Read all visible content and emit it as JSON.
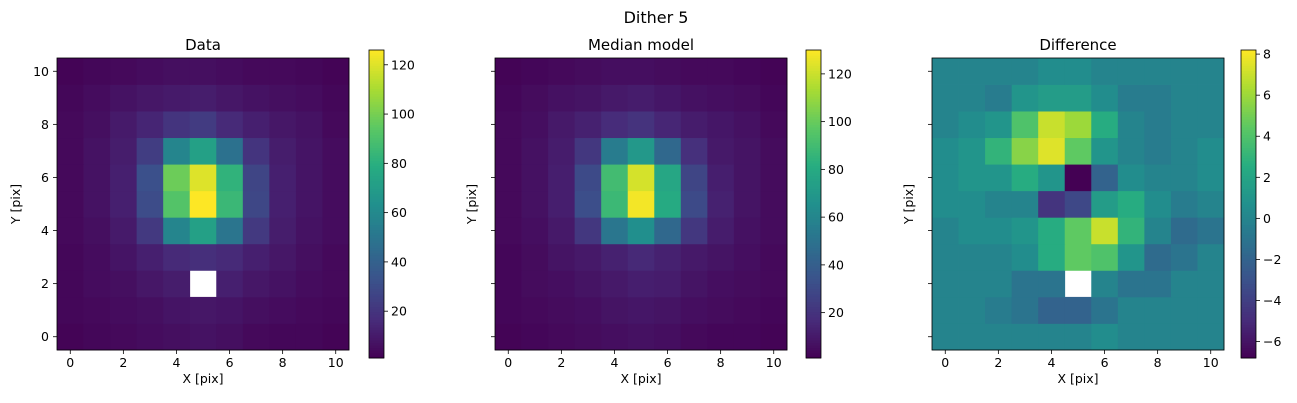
{
  "figure": {
    "suptitle": "Dither 5"
  },
  "chart_data": [
    {
      "type": "heatmap",
      "title": "Data",
      "xlabel": "X [pix]",
      "ylabel": "Y [pix]",
      "xlim": [
        -0.5,
        10.5
      ],
      "ylim": [
        -0.5,
        10.5
      ],
      "xticks": [
        0,
        2,
        4,
        6,
        8,
        10
      ],
      "yticks": [
        0,
        2,
        4,
        6,
        8,
        10
      ],
      "show_ytick_labels": true,
      "colormap": "viridis",
      "vmin": 1,
      "vmax": 126,
      "colorbar_ticks": [
        20,
        40,
        60,
        80,
        100,
        120
      ],
      "grid": false,
      "z": [
        [
          2,
          3,
          4,
          5,
          6,
          7,
          6,
          4,
          3,
          3,
          2
        ],
        [
          3,
          4,
          5,
          6,
          8,
          9,
          8,
          6,
          5,
          4,
          3
        ],
        [
          3,
          5,
          6,
          9,
          11,
          null,
          12,
          9,
          7,
          5,
          4
        ],
        [
          3,
          5,
          8,
          12,
          16,
          18,
          16,
          12,
          9,
          6,
          4
        ],
        [
          4,
          6,
          10,
          22,
          58,
          72,
          50,
          22,
          11,
          7,
          5
        ],
        [
          4,
          7,
          12,
          30,
          92,
          126,
          85,
          28,
          12,
          8,
          5
        ],
        [
          4,
          7,
          12,
          32,
          98,
          120,
          82,
          27,
          12,
          8,
          5
        ],
        [
          4,
          7,
          11,
          24,
          58,
          72,
          48,
          20,
          11,
          8,
          5
        ],
        [
          4,
          6,
          10,
          14,
          20,
          23,
          16,
          12,
          9,
          7,
          4
        ],
        [
          3,
          5,
          7,
          9,
          10,
          11,
          9,
          7,
          6,
          5,
          3
        ],
        [
          2,
          3,
          4,
          5,
          6,
          6,
          5,
          4,
          4,
          3,
          2
        ]
      ]
    },
    {
      "type": "heatmap",
      "title": "Median model",
      "xlabel": "X [pix]",
      "ylabel": "Y [pix]",
      "xlim": [
        -0.5,
        10.5
      ],
      "ylim": [
        -0.5,
        10.5
      ],
      "xticks": [
        0,
        2,
        4,
        6,
        8,
        10
      ],
      "yticks": [
        0,
        2,
        4,
        6,
        8,
        10
      ],
      "show_ytick_labels": false,
      "colormap": "viridis",
      "vmin": 1,
      "vmax": 130,
      "colorbar_ticks": [
        20,
        40,
        60,
        80,
        100,
        120
      ],
      "grid": false,
      "z": [
        [
          2,
          3,
          4,
          5,
          6,
          7,
          6,
          4,
          3,
          3,
          2
        ],
        [
          3,
          4,
          5,
          6,
          8,
          9,
          8,
          6,
          5,
          4,
          3
        ],
        [
          3,
          5,
          6,
          8,
          10,
          12,
          11,
          8,
          6,
          5,
          4
        ],
        [
          3,
          5,
          8,
          10,
          13,
          16,
          13,
          10,
          8,
          6,
          4
        ],
        [
          4,
          6,
          10,
          22,
          52,
          65,
          45,
          22,
          11,
          7,
          5
        ],
        [
          4,
          7,
          12,
          32,
          88,
          128,
          80,
          30,
          13,
          8,
          5
        ],
        [
          4,
          7,
          12,
          30,
          90,
          122,
          78,
          28,
          12,
          8,
          5
        ],
        [
          4,
          7,
          11,
          22,
          55,
          70,
          45,
          19,
          10,
          8,
          5
        ],
        [
          4,
          6,
          10,
          13,
          17,
          20,
          15,
          11,
          9,
          7,
          4
        ],
        [
          3,
          5,
          7,
          8,
          10,
          11,
          9,
          7,
          6,
          5,
          3
        ],
        [
          2,
          3,
          4,
          5,
          6,
          6,
          5,
          4,
          4,
          3,
          2
        ]
      ]
    },
    {
      "type": "heatmap",
      "title": "Difference",
      "xlabel": "X [pix]",
      "ylabel": "Y [pix]",
      "xlim": [
        -0.5,
        10.5
      ],
      "ylim": [
        -0.5,
        10.5
      ],
      "xticks": [
        0,
        2,
        4,
        6,
        8,
        10
      ],
      "yticks": [
        0,
        2,
        4,
        6,
        8,
        10
      ],
      "show_ytick_labels": false,
      "colormap": "viridis",
      "vmin": -6.8,
      "vmax": 8.2,
      "colorbar_ticks": [
        -6,
        -4,
        -2,
        0,
        2,
        4,
        6,
        8
      ],
      "grid": false,
      "z": [
        [
          0,
          0,
          0,
          0,
          0,
          0,
          0.5,
          0,
          0,
          0,
          0
        ],
        [
          0,
          0,
          -0.5,
          -1,
          -2,
          -2,
          -1,
          0,
          0,
          0,
          0
        ],
        [
          0,
          0,
          0,
          -1,
          -1,
          null,
          0,
          -1,
          -1,
          0,
          0
        ],
        [
          0,
          0,
          0,
          0.5,
          2.5,
          4.5,
          4,
          1,
          -1.5,
          -1,
          0
        ],
        [
          0,
          0.5,
          0.5,
          1,
          2.5,
          4.5,
          7,
          3,
          0,
          -1.5,
          -1
        ],
        [
          0.5,
          0.5,
          0,
          0,
          -4.5,
          -3.5,
          1.5,
          2.5,
          0.5,
          -0.5,
          0
        ],
        [
          0.5,
          1,
          1,
          2.5,
          1,
          -6.8,
          -2,
          0.5,
          0,
          0,
          0.5
        ],
        [
          0.5,
          1,
          3,
          5.5,
          7.5,
          4.5,
          1,
          0,
          -0.5,
          0,
          0.5
        ],
        [
          0,
          0.5,
          1,
          4,
          7,
          6,
          2.5,
          0,
          -0.5,
          0,
          0
        ],
        [
          0,
          0,
          -0.5,
          1,
          1.5,
          1.5,
          0.5,
          -0.5,
          -0.5,
          0,
          0
        ],
        [
          0,
          0,
          0,
          0,
          0.5,
          0.5,
          0,
          0,
          0,
          0,
          0
        ]
      ]
    }
  ]
}
